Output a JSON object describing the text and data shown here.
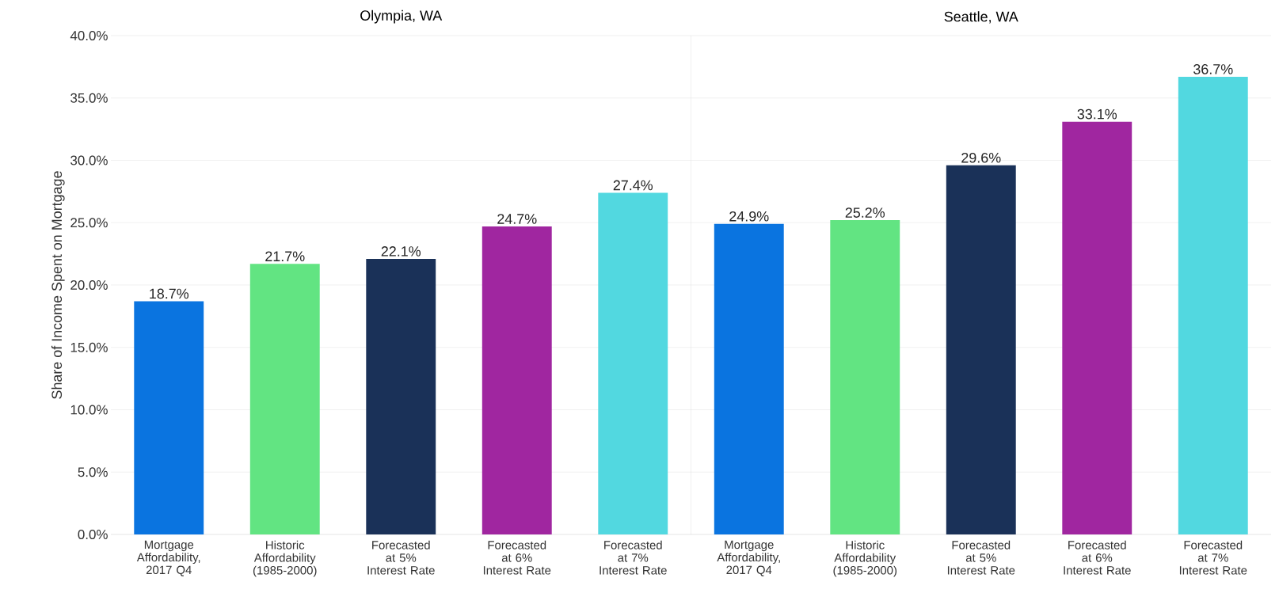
{
  "chart_data": [
    {
      "type": "bar",
      "title": "Olympia, WA",
      "ylabel": "Share of Income Spent on Mortgage",
      "categories": [
        "Mortgage Affordability, 2017 Q4",
        "Historic Affordability (1985-2000)",
        "Forecasted at 5% Interest Rate",
        "Forecasted at 6% Interest Rate",
        "Forecasted at 7% Interest Rate"
      ],
      "values": [
        18.7,
        21.7,
        22.1,
        24.7,
        27.4
      ],
      "value_labels": [
        "18.7%",
        "21.7%",
        "22.1%",
        "24.7%",
        "27.4%"
      ],
      "colors": [
        "#0a74e0",
        "#62e482",
        "#1a3158",
        "#a026a0",
        "#52d8e0"
      ],
      "ylim": [
        0,
        40
      ],
      "yticks": [
        {
          "value": 0,
          "label": "0.0%"
        },
        {
          "value": 5,
          "label": "5.0%"
        },
        {
          "value": 10,
          "label": "10.0%"
        },
        {
          "value": 15,
          "label": "15.0%"
        },
        {
          "value": 20,
          "label": "20.0%"
        },
        {
          "value": 25,
          "label": "25.0%"
        },
        {
          "value": 30,
          "label": "30.0%"
        },
        {
          "value": 35,
          "label": "35.0%"
        },
        {
          "value": 40,
          "label": "40.0%"
        }
      ],
      "grid": "y"
    },
    {
      "type": "bar",
      "title": "Seattle, WA",
      "categories": [
        "Mortgage Affordability, 2017 Q4",
        "Historic Affordability (1985-2000)",
        "Forecasted at 5% Interest Rate",
        "Forecasted at 6% Interest Rate",
        "Forecasted at 7% Interest Rate"
      ],
      "values": [
        24.9,
        25.2,
        29.6,
        33.1,
        36.7
      ],
      "value_labels": [
        "24.9%",
        "25.2%",
        "29.6%",
        "33.1%",
        "36.7%"
      ],
      "colors": [
        "#0a74e0",
        "#62e482",
        "#1a3158",
        "#a026a0",
        "#52d8e0"
      ],
      "ylim": [
        0,
        40
      ],
      "yticks": [
        0,
        5,
        10,
        15,
        20,
        25,
        30,
        35,
        40
      ],
      "grid": "y",
      "tick_labels": "x"
    }
  ]
}
